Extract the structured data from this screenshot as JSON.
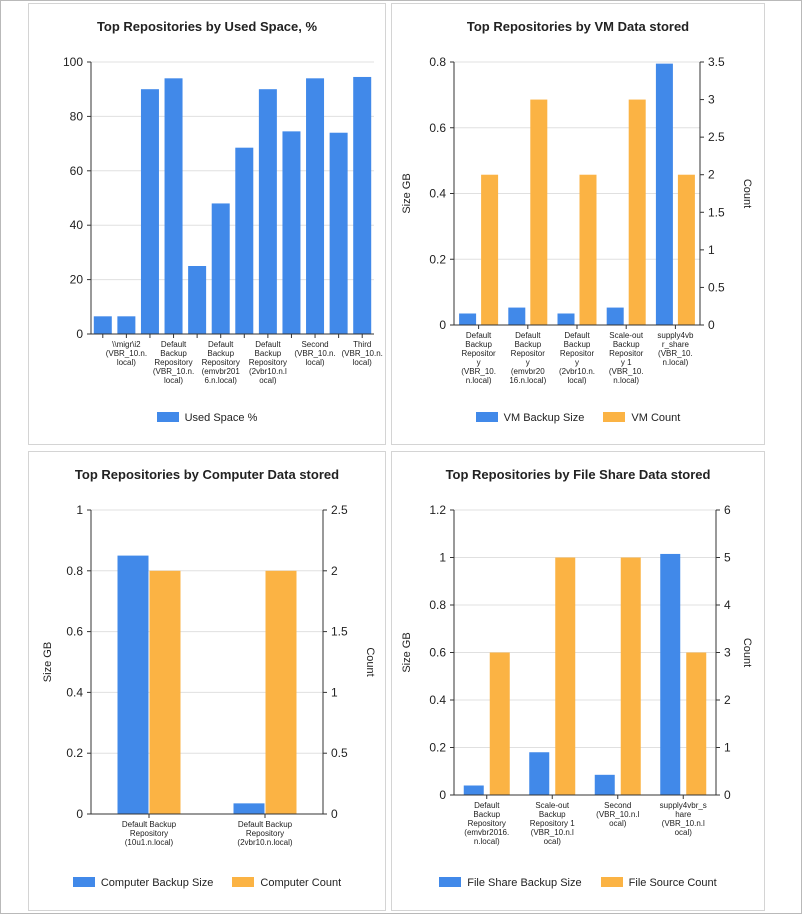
{
  "colors": {
    "blue": "#4189e9",
    "orange": "#fbb344",
    "grid": "#e0e0e0",
    "axis": "#333333"
  },
  "chart_data": [
    {
      "type": "bar",
      "title": "Top Repositories by Used Space, %",
      "categories": [
        "",
        "\\\\migr\\i2 (VBR_10.n.local)",
        "",
        "Default Backup Repository (VBR_10.n.local)",
        "",
        "Default Backup Repository (emvbr2016.n.local)",
        "",
        "Default Backup Repository (2vbr10.n.local)",
        "",
        "Second (VBR_10.n.local)",
        "",
        "Third (VBR_10.n.local)"
      ],
      "tick_labels": [
        "",
        [
          "\\\\migr\\i2",
          "(VBR_10.n.",
          "local)"
        ],
        "",
        [
          "Default",
          "Backup",
          "Repository",
          "(VBR_10.n.",
          "local)"
        ],
        "",
        [
          "Default",
          "Backup",
          "Repository",
          "(emvbr201",
          "6.n.local)"
        ],
        "",
        [
          "Default",
          "Backup",
          "Repository",
          "(2vbr10.n.l",
          "ocal)"
        ],
        "",
        [
          "Second",
          "(VBR_10.n.",
          "local)"
        ],
        "",
        [
          "Third",
          "(VBR_10.n.",
          "local)"
        ]
      ],
      "series": [
        {
          "name": "Used Space %",
          "values": [
            6.5,
            6.5,
            90,
            94,
            25,
            48,
            68.5,
            90,
            74.5,
            94,
            74,
            94.5
          ]
        }
      ],
      "ylim": [
        0,
        100
      ],
      "yticks": [
        "0",
        "20",
        "40",
        "60",
        "80",
        "100"
      ],
      "ylabel": "",
      "legend": "bottom"
    },
    {
      "type": "bar",
      "title": "Top Repositories by VM Data stored",
      "categories": [
        "Default Backup Repository (VBR_10.n.local)",
        "Default Backup Repository (emvbr2016.n.local)",
        "Default Backup Repository (2vbr10.n.local)",
        "Scale-out Backup Repository 1 (VBR_10.n.local)",
        "supply4vbr_share (VBR_10.n.local)"
      ],
      "tick_labels": [
        [
          "Default",
          "Backup",
          "Repositor",
          "y",
          "(VBR_10.",
          "n.local)"
        ],
        [
          "Default",
          "Backup",
          "Repositor",
          "y",
          "(emvbr20",
          "16.n.local)"
        ],
        [
          "Default",
          "Backup",
          "Repositor",
          "y",
          "(2vbr10.n.",
          "local)"
        ],
        [
          "Scale-out",
          "Backup",
          "Repositor",
          "y 1",
          "(VBR_10.",
          "n.local)"
        ],
        [
          "supply4vb",
          "r_share",
          "(VBR_10.",
          "n.local)"
        ]
      ],
      "series": [
        {
          "name": "VM Backup Size",
          "values": [
            0.035,
            0.053,
            0.035,
            0.053,
            0.795
          ]
        },
        {
          "name": "VM Count",
          "values": [
            2,
            3,
            2,
            3,
            2
          ],
          "axis": "right"
        }
      ],
      "ylim": [
        0,
        0.8
      ],
      "yticks": [
        "0",
        "0.2",
        "0.4",
        "0.6",
        "0.8"
      ],
      "y2lim": [
        0,
        3.5
      ],
      "y2ticks": [
        "0",
        "0.5",
        "1",
        "1.5",
        "2",
        "2.5",
        "3",
        "3.5"
      ],
      "ylabel": "Size GB",
      "y2label": "Count",
      "legend": "bottom"
    },
    {
      "type": "bar",
      "title": "Top Repositories by Computer Data stored",
      "categories": [
        "Default Backup Repository (10u1.n.local)",
        "Default Backup Repository (2vbr10.n.local)"
      ],
      "tick_labels": [
        [
          "Default Backup",
          "Repository",
          "(10u1.n.local)"
        ],
        [
          "Default Backup",
          "Repository",
          "(2vbr10.n.local)"
        ]
      ],
      "series": [
        {
          "name": "Computer Backup Size",
          "values": [
            0.85,
            0.035
          ]
        },
        {
          "name": "Computer Count",
          "values": [
            2,
            2
          ],
          "axis": "right"
        }
      ],
      "ylim": [
        0,
        1
      ],
      "yticks": [
        "0",
        "0.2",
        "0.4",
        "0.6",
        "0.8",
        "1"
      ],
      "y2lim": [
        0,
        2.5
      ],
      "y2ticks": [
        "0",
        "0.5",
        "1",
        "1.5",
        "2",
        "2.5"
      ],
      "ylabel": "Size GB",
      "y2label": "Count",
      "legend": "bottom"
    },
    {
      "type": "bar",
      "title": "Top Repositories by File Share Data stored",
      "categories": [
        "Default Backup Repository (emvbr2016.n.local)",
        "Scale-out Backup Repository 1 (VBR_10.n.local)",
        "Second (VBR_10.n.local)",
        "supply4vbr_share (VBR_10.n.local)"
      ],
      "tick_labels": [
        [
          "Default",
          "Backup",
          "Repository",
          "(emvbr2016.",
          "n.local)"
        ],
        [
          "Scale-out",
          "Backup",
          "Repository 1",
          "(VBR_10.n.l",
          "ocal)"
        ],
        [
          "Second",
          "(VBR_10.n.l",
          "ocal)"
        ],
        [
          "supply4vbr_s",
          "hare",
          "(VBR_10.n.l",
          "ocal)"
        ]
      ],
      "series": [
        {
          "name": "File Share Backup Size",
          "values": [
            0.04,
            0.18,
            0.085,
            1.015
          ]
        },
        {
          "name": "File Source Count",
          "values": [
            3,
            5,
            5,
            3
          ],
          "axis": "right"
        }
      ],
      "ylim": [
        0,
        1.2
      ],
      "yticks": [
        "0",
        "0.2",
        "0.4",
        "0.6",
        "0.8",
        "1",
        "1.2"
      ],
      "y2lim": [
        0,
        6
      ],
      "y2ticks": [
        "0",
        "1",
        "2",
        "3",
        "4",
        "5",
        "6"
      ],
      "ylabel": "Size GB",
      "y2label": "Count",
      "legend": "bottom"
    }
  ]
}
